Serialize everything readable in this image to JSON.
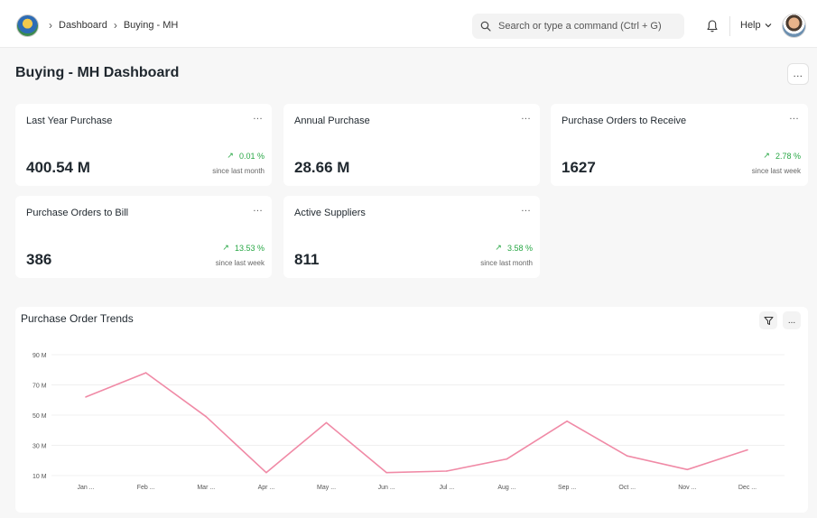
{
  "breadcrumb": {
    "items": [
      "Dashboard",
      "Buying - MH"
    ]
  },
  "search": {
    "placeholder": "Search or type a command (Ctrl + G)"
  },
  "header": {
    "help_label": "Help"
  },
  "page": {
    "title": "Buying - MH Dashboard",
    "menu_label": "..."
  },
  "cards": [
    {
      "title": "Last Year Purchase",
      "value": "400.54 M",
      "change": "0.01 %",
      "since": "since last month",
      "menu": "..."
    },
    {
      "title": "Annual Purchase",
      "value": "28.66 M",
      "change": "",
      "since": "",
      "menu": "..."
    },
    {
      "title": "Purchase Orders to Receive",
      "value": "1627",
      "change": "2.78 %",
      "since": "since last week",
      "menu": "..."
    },
    {
      "title": "Purchase Orders to Bill",
      "value": "386",
      "change": "13.53 %",
      "since": "since last week",
      "menu": "..."
    },
    {
      "title": "Active Suppliers",
      "value": "811",
      "change": "3.58 %",
      "since": "since last month",
      "menu": "..."
    }
  ],
  "colors": {
    "accent_green": "#28a745",
    "line": "#f08aa6"
  },
  "chart_data": {
    "type": "line",
    "title": "Purchase Order Trends",
    "categories": [
      "Jan ...",
      "Feb ...",
      "Mar ...",
      "Apr ...",
      "May ...",
      "Jun ...",
      "Jul ...",
      "Aug ...",
      "Sep ...",
      "Oct ...",
      "Nov ...",
      "Dec ..."
    ],
    "values": [
      62,
      78,
      49,
      12,
      45,
      12,
      13,
      21,
      46,
      23,
      14,
      27
    ],
    "ytick_labels": [
      "90 M",
      "70 M",
      "50 M",
      "30 M",
      "10 M"
    ],
    "yticks": [
      90,
      70,
      50,
      30,
      10
    ],
    "ylim": [
      10,
      90
    ],
    "grid": true,
    "menu_label": "..."
  }
}
